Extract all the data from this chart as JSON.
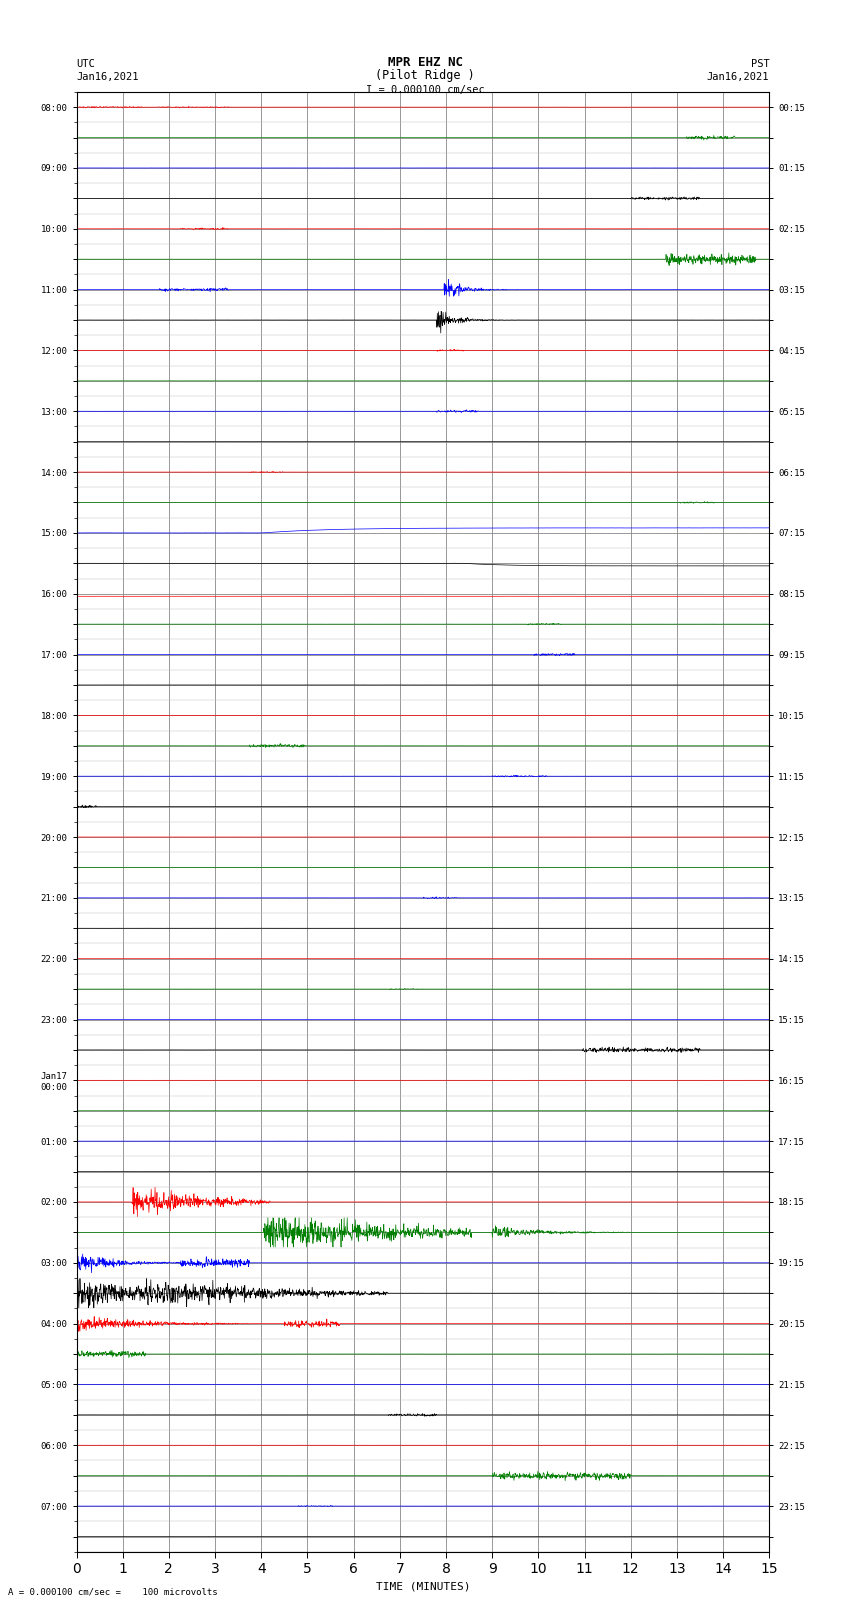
{
  "title_line1": "MPR EHZ NC",
  "title_line2": "(Pilot Ridge )",
  "title_scale": "I = 0.000100 cm/sec",
  "left_label_top": "UTC",
  "left_label_date": "Jan16,2021",
  "right_label_top": "PST",
  "right_label_date": "Jan16,2021",
  "bottom_label": "TIME (MINUTES)",
  "footer_label": "= 0.000100 cm/sec =    100 microvolts",
  "background_color": "#ffffff",
  "grid_color": "#aaaaaa",
  "utc_times_left": [
    "08:00",
    "",
    "09:00",
    "",
    "10:00",
    "",
    "11:00",
    "",
    "12:00",
    "",
    "13:00",
    "",
    "14:00",
    "",
    "15:00",
    "",
    "16:00",
    "",
    "17:00",
    "",
    "18:00",
    "",
    "19:00",
    "",
    "20:00",
    "",
    "21:00",
    "",
    "22:00",
    "",
    "23:00",
    "",
    "Jan17\n00:00",
    "",
    "01:00",
    "",
    "02:00",
    "",
    "03:00",
    "",
    "04:00",
    "",
    "05:00",
    "",
    "06:00",
    "",
    "07:00",
    ""
  ],
  "pst_times_right": [
    "00:15",
    "",
    "01:15",
    "",
    "02:15",
    "",
    "03:15",
    "",
    "04:15",
    "",
    "05:15",
    "",
    "06:15",
    "",
    "07:15",
    "",
    "08:15",
    "",
    "09:15",
    "",
    "10:15",
    "",
    "11:15",
    "",
    "12:15",
    "",
    "13:15",
    "",
    "14:15",
    "",
    "15:15",
    "",
    "16:15",
    "",
    "17:15",
    "",
    "18:15",
    "",
    "19:15",
    "",
    "20:15",
    "",
    "21:15",
    "",
    "22:15",
    "",
    "23:15",
    ""
  ],
  "n_rows": 48,
  "fig_width": 8.5,
  "fig_height": 16.13,
  "dpi": 100,
  "row_amplitude": 0.3
}
